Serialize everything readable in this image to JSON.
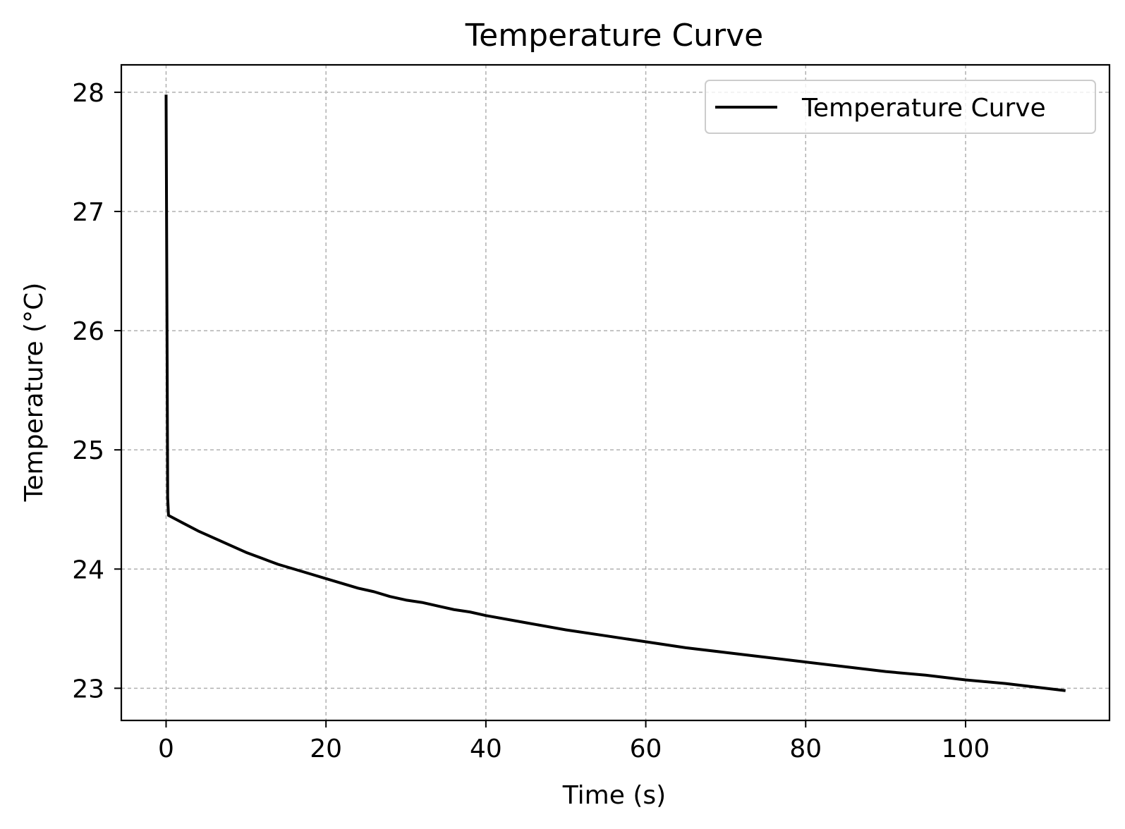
{
  "chart_data": {
    "type": "line",
    "title": "Temperature Curve",
    "xlabel": "Time (s)",
    "ylabel": "Temperature (°C)",
    "xlim": [
      -5.6,
      118
    ],
    "ylim": [
      22.73,
      28.23
    ],
    "xticks": [
      0,
      20,
      40,
      60,
      80,
      100
    ],
    "yticks": [
      23,
      24,
      25,
      26,
      27,
      28
    ],
    "grid": true,
    "legend_position": "upper right",
    "series": [
      {
        "name": "Temperature Curve",
        "color": "#000000",
        "x": [
          0,
          0.2,
          0.3,
          2,
          4,
          6,
          8,
          10,
          12,
          14,
          16,
          18,
          20,
          22,
          24,
          26,
          28,
          30,
          32,
          34,
          36,
          38,
          40,
          45,
          50,
          55,
          60,
          65,
          70,
          75,
          80,
          85,
          90,
          95,
          100,
          105,
          110,
          112.5
        ],
        "y": [
          27.98,
          24.6,
          24.45,
          24.39,
          24.32,
          24.26,
          24.2,
          24.14,
          24.09,
          24.04,
          24.0,
          23.96,
          23.92,
          23.88,
          23.84,
          23.81,
          23.77,
          23.74,
          23.72,
          23.69,
          23.66,
          23.64,
          23.61,
          23.55,
          23.49,
          23.44,
          23.39,
          23.34,
          23.3,
          23.26,
          23.22,
          23.18,
          23.14,
          23.11,
          23.07,
          23.04,
          23.0,
          22.98
        ]
      }
    ]
  }
}
